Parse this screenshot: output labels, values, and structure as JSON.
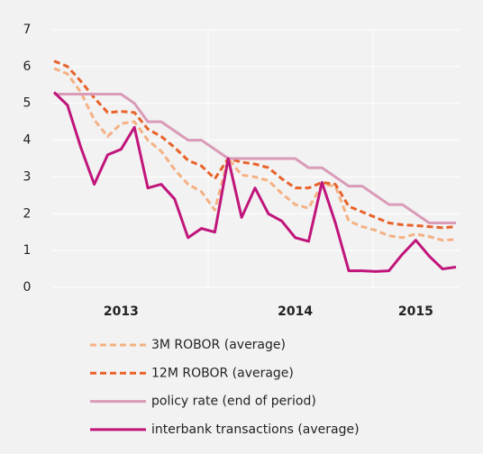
{
  "chart_data": {
    "type": "line",
    "categories": [
      null,
      null,
      null,
      null,
      null,
      "2013",
      null,
      null,
      null,
      null,
      null,
      null,
      null,
      null,
      null,
      null,
      null,
      null,
      "2014",
      null,
      null,
      null,
      null,
      null,
      null,
      null,
      null,
      "2015",
      null,
      null,
      null
    ],
    "series": [
      {
        "name": "3M ROBOR (average)",
        "color": "#f4b183",
        "dash": true,
        "values": [
          5.95,
          5.8,
          5.3,
          4.55,
          4.1,
          4.45,
          4.5,
          4.0,
          3.7,
          3.2,
          2.8,
          2.6,
          2.1,
          3.5,
          3.05,
          3.0,
          2.9,
          2.55,
          2.25,
          2.15,
          2.8,
          2.75,
          1.8,
          1.65,
          1.55,
          1.4,
          1.35,
          1.45,
          1.38,
          1.28,
          1.3
        ]
      },
      {
        "name": "12M ROBOR (average)",
        "color": "#e8622a",
        "dash": true,
        "values": [
          6.15,
          6.0,
          5.6,
          5.15,
          4.75,
          4.78,
          4.75,
          4.3,
          4.1,
          3.8,
          3.45,
          3.3,
          2.95,
          3.5,
          3.4,
          3.35,
          3.25,
          2.95,
          2.7,
          2.7,
          2.85,
          2.8,
          2.2,
          2.05,
          1.9,
          1.75,
          1.7,
          1.68,
          1.65,
          1.62,
          1.65
        ]
      },
      {
        "name": "policy rate (end of period)",
        "color": "#d99bb8",
        "dash": false,
        "values": [
          5.25,
          5.25,
          5.25,
          5.25,
          5.25,
          5.25,
          5.0,
          4.5,
          4.5,
          4.25,
          4.0,
          4.0,
          3.75,
          3.5,
          3.5,
          3.5,
          3.5,
          3.5,
          3.5,
          3.25,
          3.25,
          3.0,
          2.75,
          2.75,
          2.5,
          2.25,
          2.25,
          2.0,
          1.75,
          1.75,
          1.75
        ]
      },
      {
        "name": "interbank transactions (average)",
        "color": "#c0157a",
        "dash": false,
        "values": [
          5.3,
          4.95,
          3.8,
          2.8,
          3.6,
          3.75,
          4.35,
          2.7,
          2.8,
          2.4,
          1.35,
          1.6,
          1.5,
          3.5,
          1.9,
          2.7,
          2.0,
          1.8,
          1.35,
          1.25,
          2.85,
          1.75,
          0.45,
          0.45,
          0.43,
          0.45,
          0.9,
          1.28,
          0.85,
          0.5,
          0.55
        ]
      }
    ],
    "ylim": [
      0,
      7
    ],
    "yticks": [
      0,
      1,
      2,
      3,
      4,
      5,
      6,
      7
    ],
    "grid": true
  }
}
